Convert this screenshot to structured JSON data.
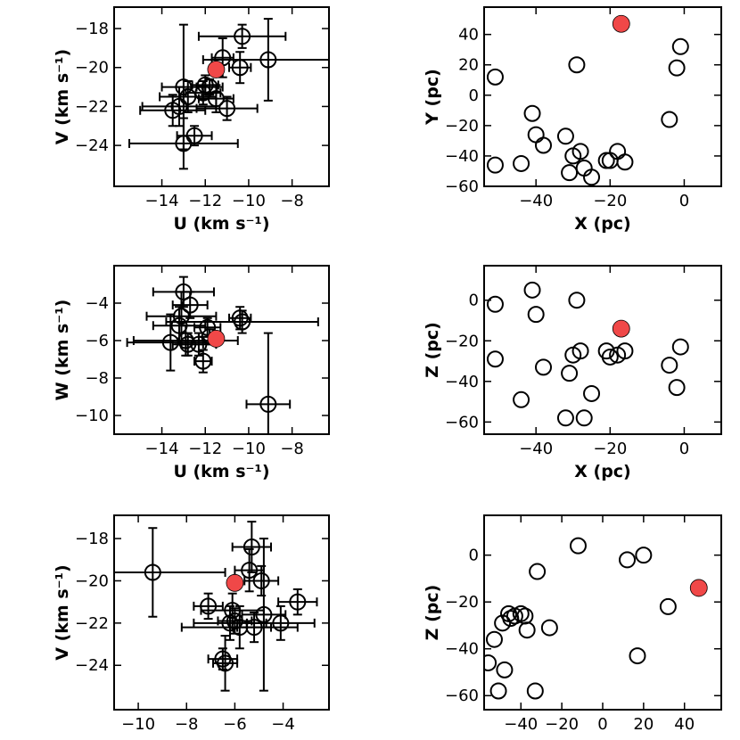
{
  "figure": {
    "colors": {
      "axis": "#000000",
      "target": "#f04848"
    }
  },
  "chart_data": [
    {
      "id": "uv",
      "type": "scatter",
      "xlabel": "U (km s⁻¹)",
      "ylabel": "V (km s⁻¹)",
      "xlim": [
        -16.2,
        -6.3
      ],
      "ylim": [
        -26.1,
        -16.9
      ],
      "xticks": [
        -14,
        -12,
        -10,
        -8
      ],
      "yticks": [
        -24,
        -22,
        -20,
        -18
      ],
      "tick_labels_x": [
        "−14",
        "−12",
        "−10",
        "−8"
      ],
      "tick_labels_y": [
        "−24",
        "−22",
        "−20",
        "−18"
      ],
      "points": [
        {
          "x": -13.5,
          "y": -22.2,
          "xerr": 1.5,
          "yerr": 0.8
        },
        {
          "x": -13.2,
          "y": -22.0,
          "xerr": 1.7,
          "yerr": 1.0
        },
        {
          "x": -13.0,
          "y": -21.0,
          "xerr": 1.0,
          "yerr": 3.2
        },
        {
          "x": -12.8,
          "y": -21.5,
          "xerr": 1.3,
          "yerr": 0.8
        },
        {
          "x": -13.0,
          "y": -23.9,
          "xerr": 2.5,
          "yerr": 1.3
        },
        {
          "x": -12.5,
          "y": -23.5,
          "xerr": 0.8,
          "yerr": 0.5
        },
        {
          "x": -12.1,
          "y": -21.3,
          "xerr": 0.8,
          "yerr": 0.6
        },
        {
          "x": -12.0,
          "y": -20.9,
          "xerr": 0.6,
          "yerr": 0.5
        },
        {
          "x": -11.8,
          "y": -21.0,
          "xerr": 0.6,
          "yerr": 0.4
        },
        {
          "x": -11.5,
          "y": -21.6,
          "xerr": 0.8,
          "yerr": 0.7
        },
        {
          "x": -11.2,
          "y": -19.5,
          "xerr": 0.5,
          "yerr": 1.0
        },
        {
          "x": -11.0,
          "y": -22.1,
          "xerr": 1.4,
          "yerr": 0.6
        },
        {
          "x": -10.3,
          "y": -18.4,
          "xerr": 2.0,
          "yerr": 0.6
        },
        {
          "x": -10.4,
          "y": -20.0,
          "xerr": 0.5,
          "yerr": 0.8
        },
        {
          "x": -9.1,
          "y": -19.6,
          "xerr": 3.0,
          "yerr": 2.1
        }
      ],
      "target": {
        "x": -11.5,
        "y": -20.1
      }
    },
    {
      "id": "xy",
      "type": "scatter",
      "xlabel": "X (pc)",
      "ylabel": "Y (pc)",
      "xlim": [
        -54,
        10
      ],
      "ylim": [
        -60,
        58
      ],
      "xticks": [
        -40,
        -20,
        0
      ],
      "yticks": [
        -60,
        -40,
        -20,
        0,
        20,
        40
      ],
      "tick_labels_x": [
        "−40",
        "−20",
        "0"
      ],
      "tick_labels_y": [
        "−60",
        "−40",
        "−20",
        "0",
        "20",
        "40"
      ],
      "points": [
        {
          "x": -51,
          "y": 12
        },
        {
          "x": -51,
          "y": -46
        },
        {
          "x": -44,
          "y": -45
        },
        {
          "x": -41,
          "y": -12
        },
        {
          "x": -40,
          "y": -26
        },
        {
          "x": -38,
          "y": -33
        },
        {
          "x": -32,
          "y": -27
        },
        {
          "x": -31,
          "y": -51
        },
        {
          "x": -30,
          "y": -40
        },
        {
          "x": -29,
          "y": 20
        },
        {
          "x": -28,
          "y": -37
        },
        {
          "x": -27,
          "y": -48
        },
        {
          "x": -25,
          "y": -54
        },
        {
          "x": -21,
          "y": -43
        },
        {
          "x": -20,
          "y": -43
        },
        {
          "x": -18,
          "y": -37
        },
        {
          "x": -16,
          "y": -44
        },
        {
          "x": -4,
          "y": -16
        },
        {
          "x": -2,
          "y": 18
        },
        {
          "x": -1,
          "y": 32
        }
      ],
      "target": {
        "x": -17,
        "y": 47
      }
    },
    {
      "id": "uw",
      "type": "scatter",
      "xlabel": "U (km s⁻¹)",
      "ylabel": "W (km s⁻¹)",
      "xlim": [
        -16.2,
        -6.3
      ],
      "ylim": [
        -11.0,
        -2.0
      ],
      "xticks": [
        -14,
        -12,
        -10,
        -8
      ],
      "yticks": [
        -10,
        -8,
        -6,
        -4
      ],
      "tick_labels_x": [
        "−14",
        "−12",
        "−10",
        "−8"
      ],
      "tick_labels_y": [
        "−10",
        "−8",
        "−6",
        "−4"
      ],
      "points": [
        {
          "x": -13.6,
          "y": -6.1,
          "xerr": 2.0,
          "yerr": 1.5
        },
        {
          "x": -13.2,
          "y": -5.2,
          "xerr": 1.2,
          "yerr": 1.0
        },
        {
          "x": -13.1,
          "y": -4.7,
          "xerr": 1.6,
          "yerr": 1.3
        },
        {
          "x": -13.0,
          "y": -3.4,
          "xerr": 1.4,
          "yerr": 0.8
        },
        {
          "x": -12.9,
          "y": -6.0,
          "xerr": 2.4,
          "yerr": 0.8
        },
        {
          "x": -12.8,
          "y": -6.2,
          "xerr": 0.7,
          "yerr": 0.6
        },
        {
          "x": -12.7,
          "y": -4.1,
          "xerr": 0.8,
          "yerr": 0.7
        },
        {
          "x": -12.3,
          "y": -6.2,
          "xerr": 0.8,
          "yerr": 0.6
        },
        {
          "x": -12.1,
          "y": -7.1,
          "xerr": 0.4,
          "yerr": 0.6
        },
        {
          "x": -11.9,
          "y": -5.3,
          "xerr": 0.6,
          "yerr": 0.5
        },
        {
          "x": -11.8,
          "y": -5.8,
          "xerr": 0.5,
          "yerr": 0.4
        },
        {
          "x": -10.4,
          "y": -4.8,
          "xerr": 0.5,
          "yerr": 0.6
        },
        {
          "x": -10.3,
          "y": -5.0,
          "xerr": 3.5,
          "yerr": 0.6
        },
        {
          "x": -9.1,
          "y": -9.4,
          "xerr": 1.0,
          "yerr": 3.8
        }
      ],
      "target": {
        "x": -11.5,
        "y": -5.9
      }
    },
    {
      "id": "xz",
      "type": "scatter",
      "xlabel": "X (pc)",
      "ylabel": "Z (pc)",
      "xlim": [
        -54,
        10
      ],
      "ylim": [
        -66,
        17
      ],
      "xticks": [
        -40,
        -20,
        0
      ],
      "yticks": [
        -60,
        -40,
        -20,
        0
      ],
      "tick_labels_x": [
        "−40",
        "−20",
        "0"
      ],
      "tick_labels_y": [
        "−60",
        "−40",
        "−20",
        "0"
      ],
      "points": [
        {
          "x": -51,
          "y": -2
        },
        {
          "x": -51,
          "y": -29
        },
        {
          "x": -44,
          "y": -49
        },
        {
          "x": -41,
          "y": 5
        },
        {
          "x": -40,
          "y": -7
        },
        {
          "x": -38,
          "y": -33
        },
        {
          "x": -32,
          "y": -58
        },
        {
          "x": -31,
          "y": -36
        },
        {
          "x": -30,
          "y": -27
        },
        {
          "x": -29,
          "y": 0
        },
        {
          "x": -28,
          "y": -25
        },
        {
          "x": -27,
          "y": -58
        },
        {
          "x": -25,
          "y": -46
        },
        {
          "x": -21,
          "y": -25
        },
        {
          "x": -20,
          "y": -28
        },
        {
          "x": -18,
          "y": -27
        },
        {
          "x": -16,
          "y": -25
        },
        {
          "x": -4,
          "y": -32
        },
        {
          "x": -2,
          "y": -43
        },
        {
          "x": -1,
          "y": -23
        }
      ],
      "target": {
        "x": -17,
        "y": -14
      }
    },
    {
      "id": "wv",
      "type": "scatter",
      "xlabel": "W (km s⁻¹)",
      "ylabel": "V (km s⁻¹)",
      "xlim": [
        -11.0,
        -2.1
      ],
      "ylim": [
        -26.1,
        -16.9
      ],
      "xticks": [
        -10,
        -8,
        -6,
        -4
      ],
      "yticks": [
        -24,
        -22,
        -20,
        -18
      ],
      "tick_labels_x": [
        "−10",
        "−8",
        "−6",
        "−4"
      ],
      "tick_labels_y": [
        "−24",
        "−22",
        "−20",
        "−18"
      ],
      "points": [
        {
          "x": -9.4,
          "y": -19.6,
          "xerr": 3.0,
          "yerr": 2.1
        },
        {
          "x": -7.1,
          "y": -21.2,
          "xerr": 0.6,
          "yerr": 0.6
        },
        {
          "x": -6.5,
          "y": -23.7,
          "xerr": 0.6,
          "yerr": 0.5
        },
        {
          "x": -6.4,
          "y": -23.9,
          "xerr": 0.5,
          "yerr": 1.3
        },
        {
          "x": -6.2,
          "y": -22.0,
          "xerr": 1.5,
          "yerr": 0.8
        },
        {
          "x": -6.1,
          "y": -21.4,
          "xerr": 1.3,
          "yerr": 0.8
        },
        {
          "x": -6.0,
          "y": -21.9,
          "xerr": 0.7,
          "yerr": 0.6
        },
        {
          "x": -5.8,
          "y": -22.2,
          "xerr": 2.4,
          "yerr": 1.0
        },
        {
          "x": -5.4,
          "y": -19.5,
          "xerr": 0.6,
          "yerr": 1.0
        },
        {
          "x": -5.3,
          "y": -18.4,
          "xerr": 0.8,
          "yerr": 1.2
        },
        {
          "x": -5.2,
          "y": -22.2,
          "xerr": 0.7,
          "yerr": 0.7
        },
        {
          "x": -4.9,
          "y": -20.0,
          "xerr": 0.7,
          "yerr": 0.7
        },
        {
          "x": -4.8,
          "y": -21.6,
          "xerr": 0.9,
          "yerr": 3.6
        },
        {
          "x": -4.1,
          "y": -22.0,
          "xerr": 1.4,
          "yerr": 0.8
        },
        {
          "x": -3.4,
          "y": -21.0,
          "xerr": 0.8,
          "yerr": 0.6
        }
      ],
      "target": {
        "x": -6.0,
        "y": -20.1
      }
    },
    {
      "id": "yz",
      "type": "scatter",
      "xlabel": "Y (pc)",
      "ylabel": "Z (pc)",
      "xlim": [
        -58,
        58
      ],
      "ylim": [
        -66,
        17
      ],
      "xticks": [
        -40,
        -20,
        0,
        20,
        40
      ],
      "yticks": [
        -60,
        -40,
        -20,
        0
      ],
      "tick_labels_x": [
        "−40",
        "−20",
        "0",
        "20",
        "40"
      ],
      "tick_labels_y": [
        "−60",
        "−40",
        "−20",
        "0"
      ],
      "points": [
        {
          "x": -56,
          "y": -46
        },
        {
          "x": -53,
          "y": -36
        },
        {
          "x": -51,
          "y": -58
        },
        {
          "x": -49,
          "y": -29
        },
        {
          "x": -48,
          "y": -49
        },
        {
          "x": -46,
          "y": -25
        },
        {
          "x": -45,
          "y": -27
        },
        {
          "x": -43,
          "y": -26
        },
        {
          "x": -40,
          "y": -25
        },
        {
          "x": -38,
          "y": -26
        },
        {
          "x": -37,
          "y": -32
        },
        {
          "x": -33,
          "y": -58
        },
        {
          "x": -32,
          "y": -7
        },
        {
          "x": -26,
          "y": -31
        },
        {
          "x": -12,
          "y": 4
        },
        {
          "x": 12,
          "y": -2
        },
        {
          "x": 17,
          "y": -43
        },
        {
          "x": 20,
          "y": 0
        },
        {
          "x": 32,
          "y": -22
        }
      ],
      "target": {
        "x": 47,
        "y": -14
      }
    }
  ]
}
